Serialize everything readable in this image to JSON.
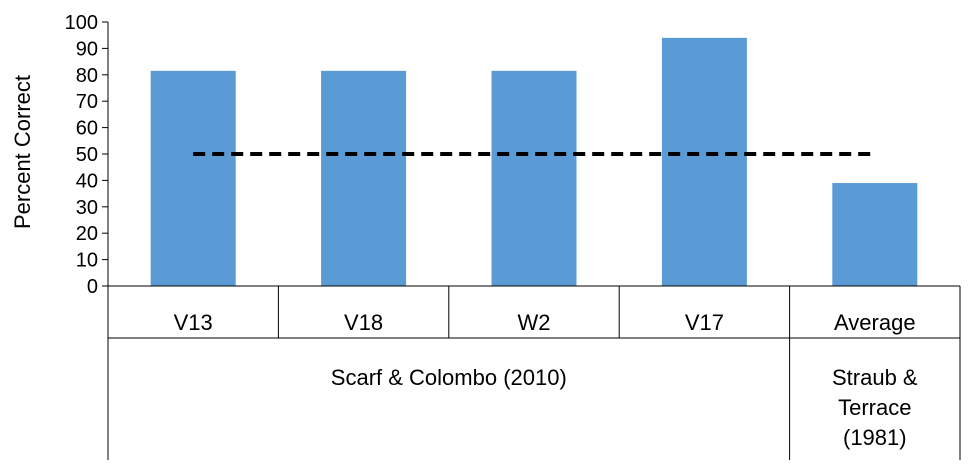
{
  "chart_data": {
    "type": "bar",
    "categories": [
      "V13",
      "V18",
      "W2",
      "V17",
      "Average"
    ],
    "values": [
      81.5,
      81.5,
      81.5,
      94,
      39
    ],
    "groups": [
      {
        "label": "Scarf & Colombo (2010)",
        "categories": [
          "V13",
          "V18",
          "W2",
          "V17"
        ]
      },
      {
        "label": "Straub & Terrace (1981)",
        "label_lines": [
          "Straub &",
          "Terrace",
          "(1981)"
        ],
        "categories": [
          "Average"
        ]
      }
    ],
    "reference_line": {
      "value": 50,
      "style": "dashed",
      "color": "#000000"
    },
    "ylabel": "Percent Correct",
    "ylim": [
      0,
      100
    ],
    "yticks": [
      0,
      10,
      20,
      30,
      40,
      50,
      60,
      70,
      80,
      90,
      100
    ],
    "grid": false,
    "bar_color": "#5B9BD5"
  }
}
